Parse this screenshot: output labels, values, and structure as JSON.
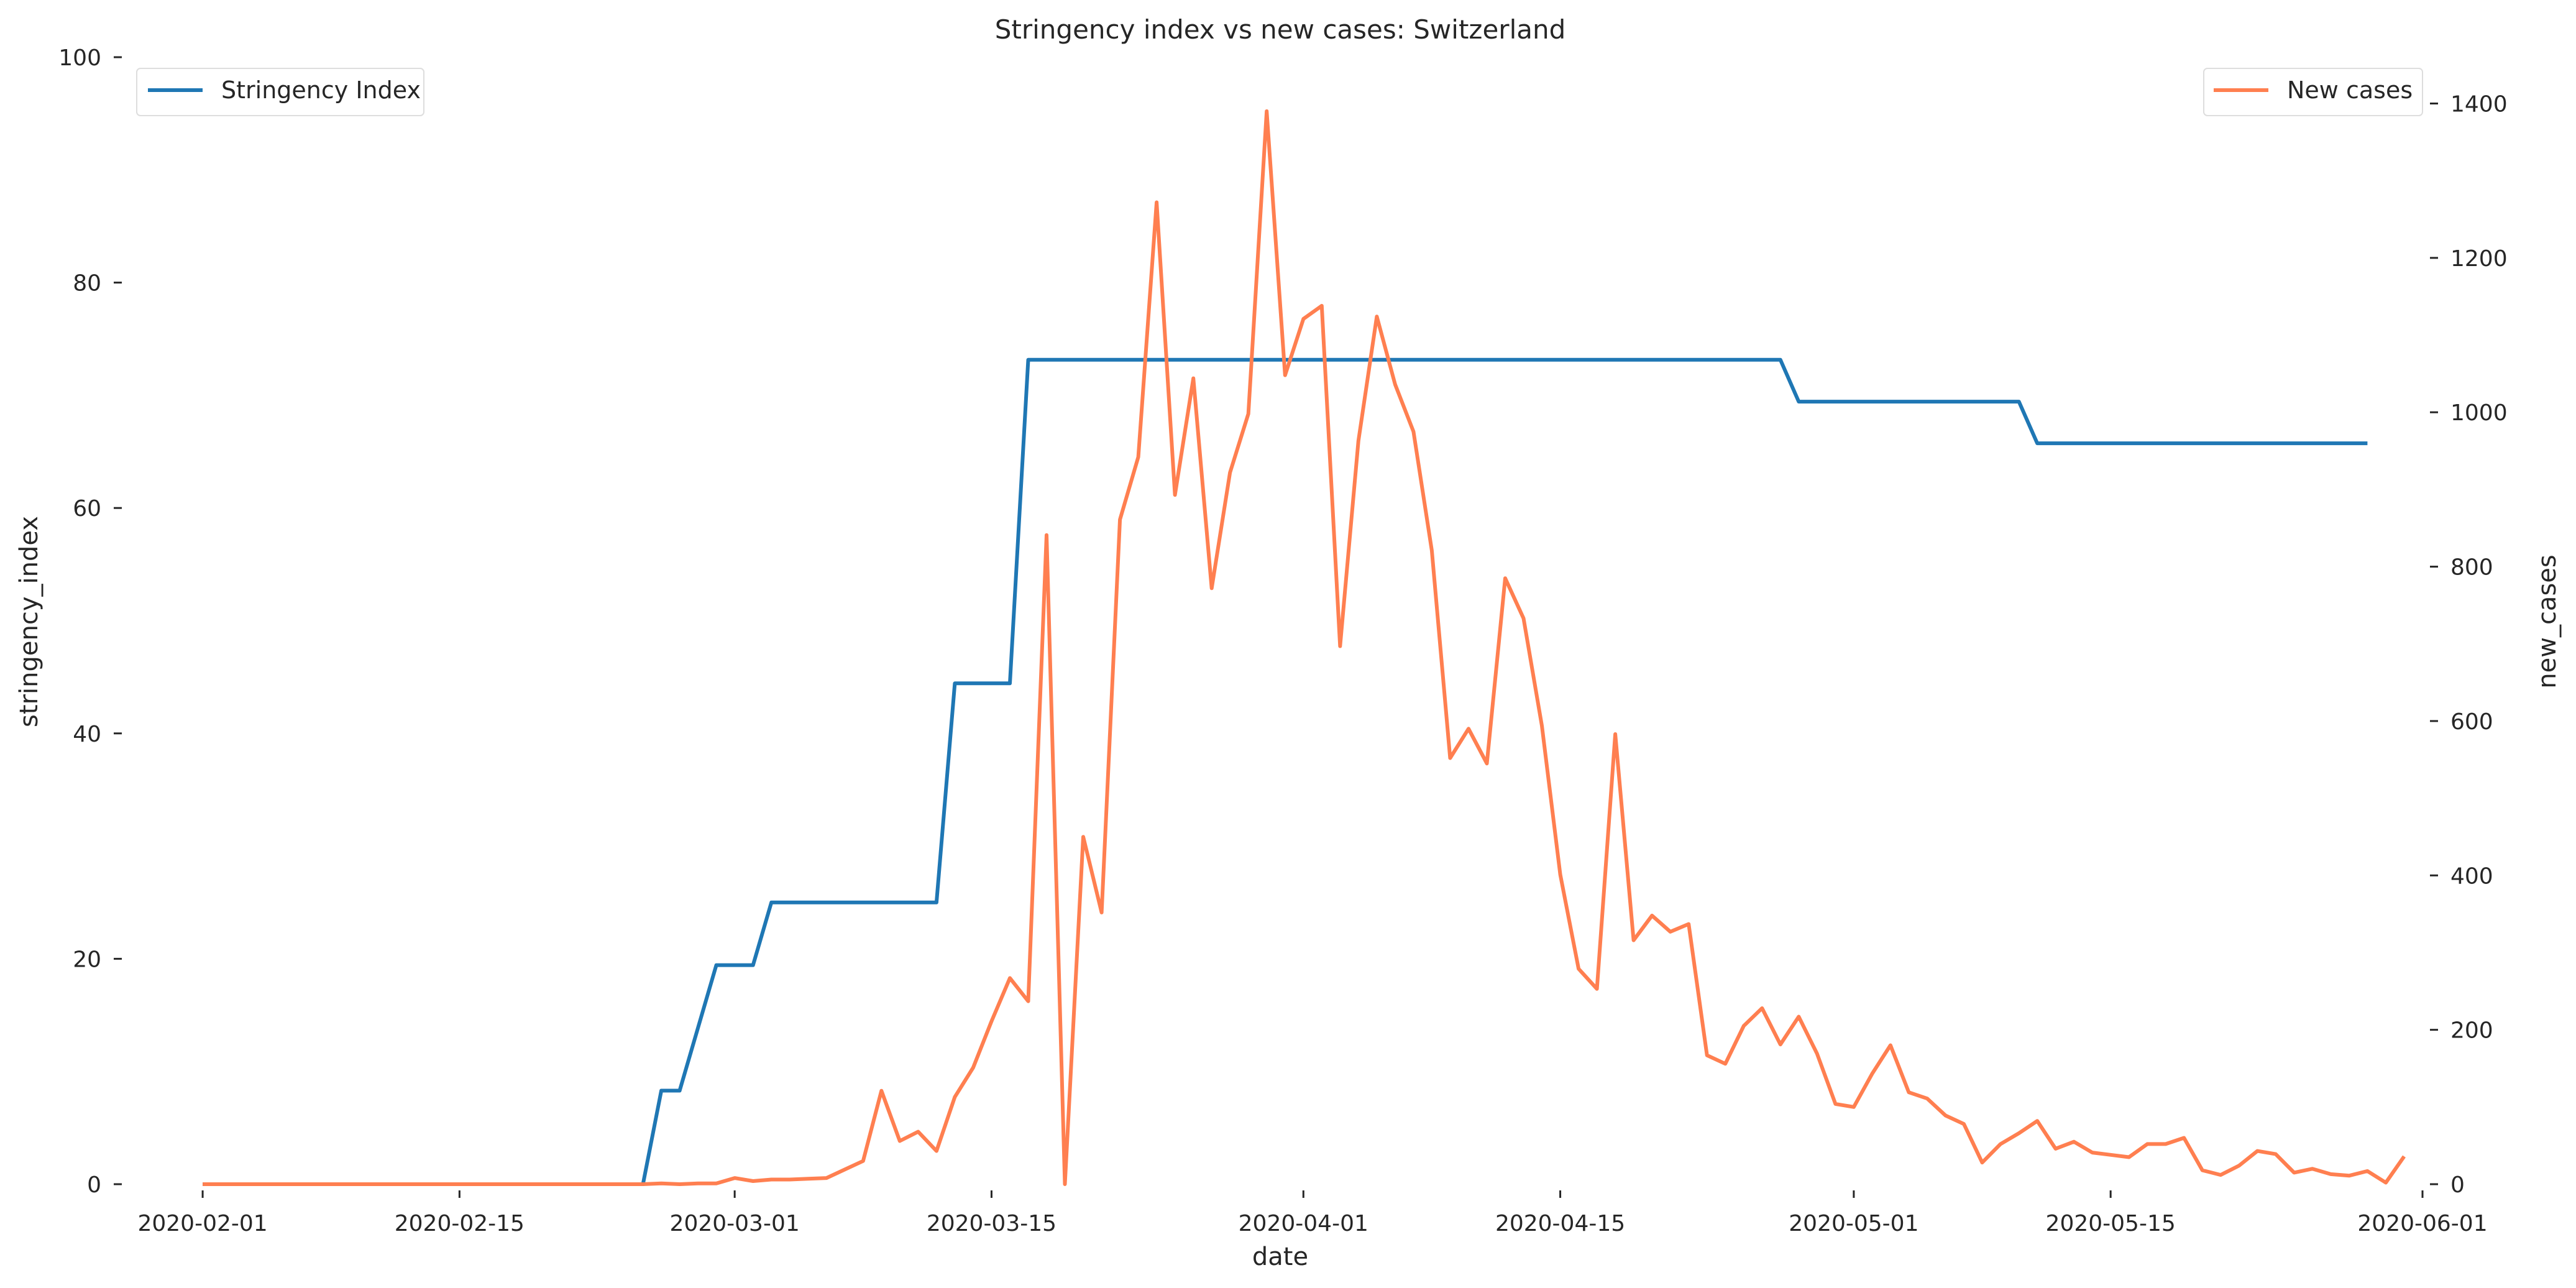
{
  "chart_data": {
    "type": "line",
    "title": "Stringency index vs new cases:  Switzerland",
    "xlabel": "date",
    "ylabel_left": "stringency_index",
    "ylabel_right": "new_cases",
    "x_start": "2020-02-01",
    "x_ticks": [
      "2020-02-01",
      "2020-02-15",
      "2020-03-01",
      "2020-03-15",
      "2020-04-01",
      "2020-04-15",
      "2020-05-01",
      "2020-05-15",
      "2020-06-01"
    ],
    "xlim": [
      "2020-01-28",
      "2020-06-01"
    ],
    "y_left_ticks": [
      0,
      20,
      40,
      60,
      80,
      100
    ],
    "ylim_left": [
      0,
      100
    ],
    "y_right_ticks": [
      0,
      200,
      400,
      600,
      800,
      1000,
      1200,
      1400
    ],
    "ylim_right": [
      0,
      1460
    ],
    "grid": false,
    "legend_left": {
      "label": "Stringency Index",
      "placement": "top-left"
    },
    "legend_right": {
      "label": "New cases",
      "placement": "top-right"
    },
    "colors": {
      "stringency": "#1f77b4",
      "new_cases": "#ff7f50"
    },
    "series": [
      {
        "name": "Stringency Index",
        "axis": "left",
        "color": "#1f77b4",
        "points": [
          [
            "2020-02-01",
            0
          ],
          [
            "2020-02-25",
            0
          ],
          [
            "2020-02-26",
            8.3
          ],
          [
            "2020-02-27",
            8.3
          ],
          [
            "2020-02-29",
            19.44
          ],
          [
            "2020-03-02",
            19.44
          ],
          [
            "2020-03-03",
            25
          ],
          [
            "2020-03-12",
            25
          ],
          [
            "2020-03-13",
            44.44
          ],
          [
            "2020-03-16",
            44.44
          ],
          [
            "2020-03-17",
            73.15
          ],
          [
            "2020-04-27",
            73.15
          ],
          [
            "2020-04-28",
            69.44
          ],
          [
            "2020-05-10",
            69.44
          ],
          [
            "2020-05-11",
            65.74
          ],
          [
            "2020-05-29",
            65.74
          ]
        ]
      },
      {
        "name": "New cases",
        "axis": "right",
        "color": "#ff7f50",
        "points": [
          [
            "2020-02-01",
            0
          ],
          [
            "2020-02-25",
            0
          ],
          [
            "2020-02-26",
            1
          ],
          [
            "2020-02-27",
            0
          ],
          [
            "2020-02-28",
            1
          ],
          [
            "2020-02-29",
            1
          ],
          [
            "2020-03-01",
            8
          ],
          [
            "2020-03-02",
            4
          ],
          [
            "2020-03-03",
            6
          ],
          [
            "2020-03-04",
            6
          ],
          [
            "2020-03-05",
            7
          ],
          [
            "2020-03-06",
            8
          ],
          [
            "2020-03-07",
            19
          ],
          [
            "2020-03-08",
            30
          ],
          [
            "2020-03-09",
            121
          ],
          [
            "2020-03-10",
            56
          ],
          [
            "2020-03-11",
            68
          ],
          [
            "2020-03-12",
            43
          ],
          [
            "2020-03-13",
            113
          ],
          [
            "2020-03-14",
            151
          ],
          [
            "2020-03-15",
            211
          ],
          [
            "2020-03-16",
            267
          ],
          [
            "2020-03-17",
            237
          ],
          [
            "2020-03-18",
            841
          ],
          [
            "2020-03-19",
            0
          ],
          [
            "2020-03-20",
            450
          ],
          [
            "2020-03-21",
            352
          ],
          [
            "2020-03-22",
            861
          ],
          [
            "2020-03-23",
            942
          ],
          [
            "2020-03-24",
            1272
          ],
          [
            "2020-03-25",
            893
          ],
          [
            "2020-03-26",
            1044
          ],
          [
            "2020-03-27",
            772
          ],
          [
            "2020-03-28",
            922
          ],
          [
            "2020-03-29",
            998
          ],
          [
            "2020-03-30",
            1390
          ],
          [
            "2020-03-31",
            1048
          ],
          [
            "2020-04-01",
            1121
          ],
          [
            "2020-04-02",
            1138
          ],
          [
            "2020-04-03",
            697
          ],
          [
            "2020-04-04",
            963
          ],
          [
            "2020-04-05",
            1124
          ],
          [
            "2020-04-06",
            1036
          ],
          [
            "2020-04-07",
            975
          ],
          [
            "2020-04-08",
            821
          ],
          [
            "2020-04-09",
            552
          ],
          [
            "2020-04-10",
            590
          ],
          [
            "2020-04-11",
            545
          ],
          [
            "2020-04-12",
            785
          ],
          [
            "2020-04-13",
            733
          ],
          [
            "2020-04-14",
            594
          ],
          [
            "2020-04-15",
            401
          ],
          [
            "2020-04-16",
            279
          ],
          [
            "2020-04-17",
            253
          ],
          [
            "2020-04-18",
            583
          ],
          [
            "2020-04-19",
            316
          ],
          [
            "2020-04-20",
            348
          ],
          [
            "2020-04-21",
            327
          ],
          [
            "2020-04-22",
            337
          ],
          [
            "2020-04-23",
            167
          ],
          [
            "2020-04-24",
            156
          ],
          [
            "2020-04-25",
            205
          ],
          [
            "2020-04-26",
            228
          ],
          [
            "2020-04-27",
            181
          ],
          [
            "2020-04-28",
            217
          ],
          [
            "2020-04-29",
            169
          ],
          [
            "2020-04-30",
            104
          ],
          [
            "2020-05-01",
            100
          ],
          [
            "2020-05-02",
            143
          ],
          [
            "2020-05-03",
            180
          ],
          [
            "2020-05-04",
            119
          ],
          [
            "2020-05-05",
            111
          ],
          [
            "2020-05-06",
            89
          ],
          [
            "2020-05-07",
            78
          ],
          [
            "2020-05-08",
            28
          ],
          [
            "2020-05-09",
            52
          ],
          [
            "2020-05-10",
            66
          ],
          [
            "2020-05-11",
            82
          ],
          [
            "2020-05-12",
            46
          ],
          [
            "2020-05-13",
            55
          ],
          [
            "2020-05-14",
            41
          ],
          [
            "2020-05-15",
            38
          ],
          [
            "2020-05-16",
            35
          ],
          [
            "2020-05-17",
            52
          ],
          [
            "2020-05-18",
            52
          ],
          [
            "2020-05-19",
            60
          ],
          [
            "2020-05-20",
            18
          ],
          [
            "2020-05-21",
            12
          ],
          [
            "2020-05-22",
            24
          ],
          [
            "2020-05-23",
            43
          ],
          [
            "2020-05-24",
            39
          ],
          [
            "2020-05-25",
            15
          ],
          [
            "2020-05-26",
            20
          ],
          [
            "2020-05-27",
            13
          ],
          [
            "2020-05-28",
            11
          ],
          [
            "2020-05-29",
            17
          ],
          [
            "2020-05-30",
            2
          ],
          [
            "2020-05-31",
            36
          ]
        ]
      }
    ]
  }
}
